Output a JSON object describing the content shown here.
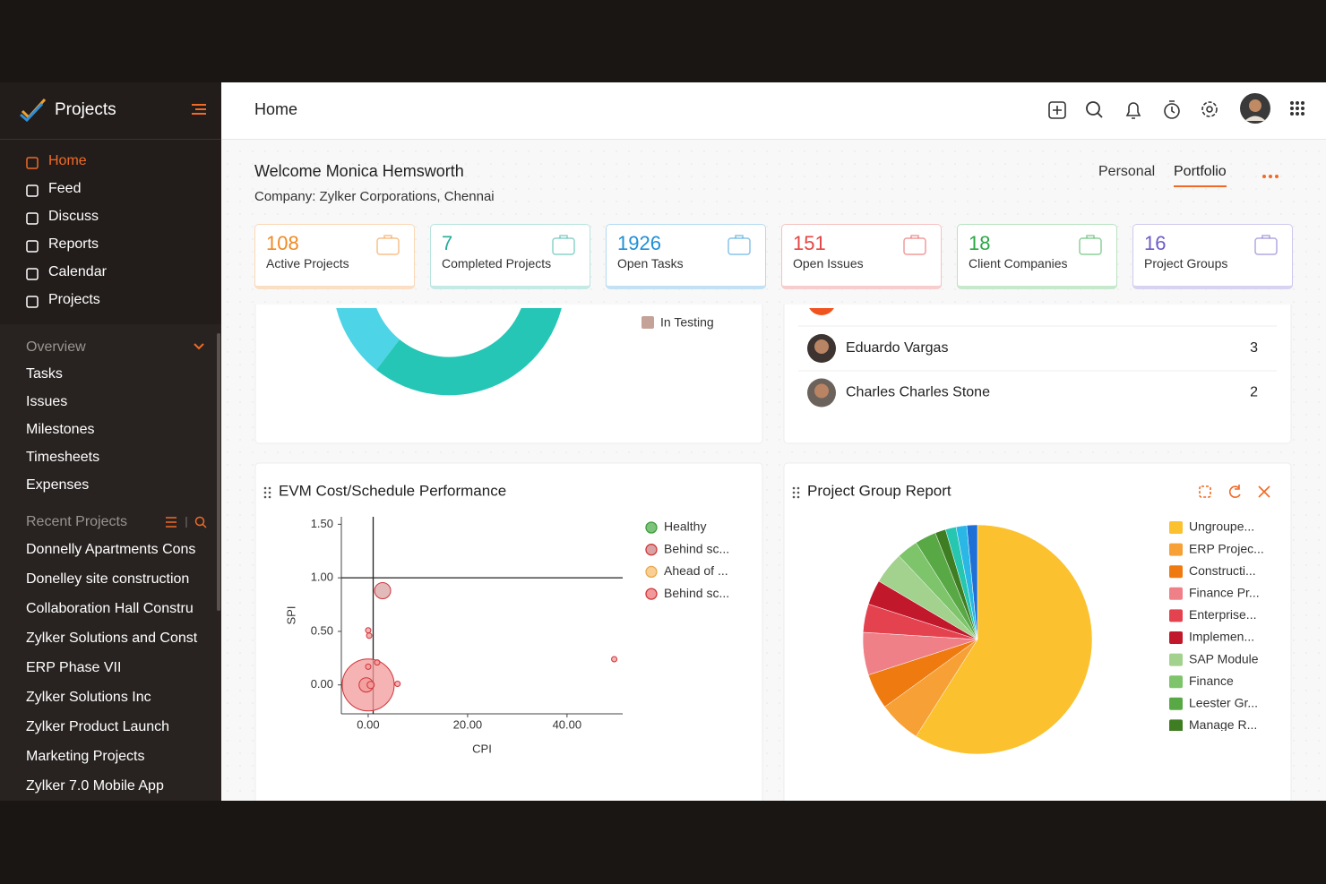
{
  "sidebar": {
    "app_name": "Projects",
    "nav": [
      "Home",
      "Feed",
      "Discuss",
      "Reports",
      "Calendar",
      "Projects"
    ],
    "overview_title": "Overview",
    "overview": [
      "Tasks",
      "Issues",
      "Milestones",
      "Timesheets",
      "Expenses"
    ],
    "recent_title": "Recent Projects",
    "recent": [
      "Donnelly Apartments Cons",
      "Donelley site construction",
      "Collaboration Hall Constru",
      "Zylker Solutions and Const",
      "ERP Phase VII",
      "Zylker Solutions Inc",
      "Zylker Product Launch",
      "Marketing Projects",
      "Zylker 7.0 Mobile App"
    ]
  },
  "header": {
    "title": "Home"
  },
  "welcome": {
    "greeting": "Welcome Monica Hemsworth",
    "company_label": "Company:",
    "company": "Zylker Corporations, Chennai",
    "tabs": [
      "Personal",
      "Portfolio"
    ]
  },
  "stats": [
    {
      "value": 108,
      "label": "Active Projects",
      "color": "#f08a24"
    },
    {
      "value": 7,
      "label": "Completed Projects",
      "color": "#27ad9a"
    },
    {
      "value": 1926,
      "label": "Open Tasks",
      "color": "#1e8fd6"
    },
    {
      "value": 151,
      "label": "Open Issues",
      "color": "#e64545"
    },
    {
      "value": 18,
      "label": "Client Companies",
      "color": "#2aa845"
    },
    {
      "value": 16,
      "label": "Project Groups",
      "color": "#6b5cc9"
    }
  ],
  "status_legend": [
    "In Testing"
  ],
  "members": [
    {
      "name": "Eduardo Vargas",
      "count": 3
    },
    {
      "name": "Charles Charles Stone",
      "count": 2
    }
  ],
  "evm": {
    "type": "scatter",
    "title": "EVM Cost/Schedule Performance",
    "x_label": "CPI",
    "y_label": "SPI",
    "xlim": [
      -5.4,
      51.2
    ],
    "ylim": [
      -0.27,
      1.57
    ],
    "xticks": [
      {
        "value": 0,
        "label": "0.00"
      },
      {
        "value": 20,
        "label": "20.00"
      },
      {
        "value": 40,
        "label": "40.00"
      }
    ],
    "yticks": [
      {
        "value": 0,
        "label": "0.00"
      },
      {
        "value": 0.5,
        "label": "0.50"
      },
      {
        "value": 1,
        "label": "1.00"
      },
      {
        "value": 1.5,
        "label": "1.50"
      }
    ],
    "reference_lines": {
      "x": 1,
      "y": 1
    },
    "series": [
      {
        "name": "Healthy",
        "color": "#7cc47a",
        "x": [],
        "y": [],
        "size": []
      },
      {
        "name": "Behind sc...",
        "color": "#d9a3a3",
        "x": [
          2.9
        ],
        "y": [
          0.88
        ],
        "size": [
          9
        ]
      },
      {
        "name": "Ahead of ...",
        "color": "#f9cf94",
        "x": [],
        "y": [],
        "size": []
      },
      {
        "name": "Behind sc...",
        "color": "#f29a9a",
        "x": [
          0,
          -0.4,
          0.5,
          0,
          0.2,
          0,
          1.8,
          5.9,
          49.5
        ],
        "y": [
          0,
          0,
          0,
          0.51,
          0.46,
          0.17,
          0.21,
          0.01,
          0.24
        ],
        "size": [
          29,
          8,
          4,
          3,
          3,
          3,
          3,
          3,
          3
        ]
      }
    ]
  },
  "group_report": {
    "type": "pie",
    "title": "Project Group Report",
    "categories": [
      "Ungroupe...",
      "ERP Projec...",
      "Constructi...",
      "Finance Pr...",
      "Enterprise...",
      "Implemen...",
      "SAP Module",
      "Finance",
      "Leester Gr...",
      "Manage R...",
      null,
      null,
      null
    ],
    "values": [
      59,
      6,
      5,
      6,
      4,
      3.5,
      4.5,
      3,
      3,
      1.5,
      1.5,
      1.5,
      1.5
    ],
    "colors": [
      "#fbc12e",
      "#f7a035",
      "#ef7b10",
      "#ef8088",
      "#e5424f",
      "#c2182b",
      "#a2d28d",
      "#7dc46b",
      "#58a945",
      "#3f7d22",
      "#26c6b0",
      "#2ab7e6",
      "#1e6fd6"
    ]
  }
}
